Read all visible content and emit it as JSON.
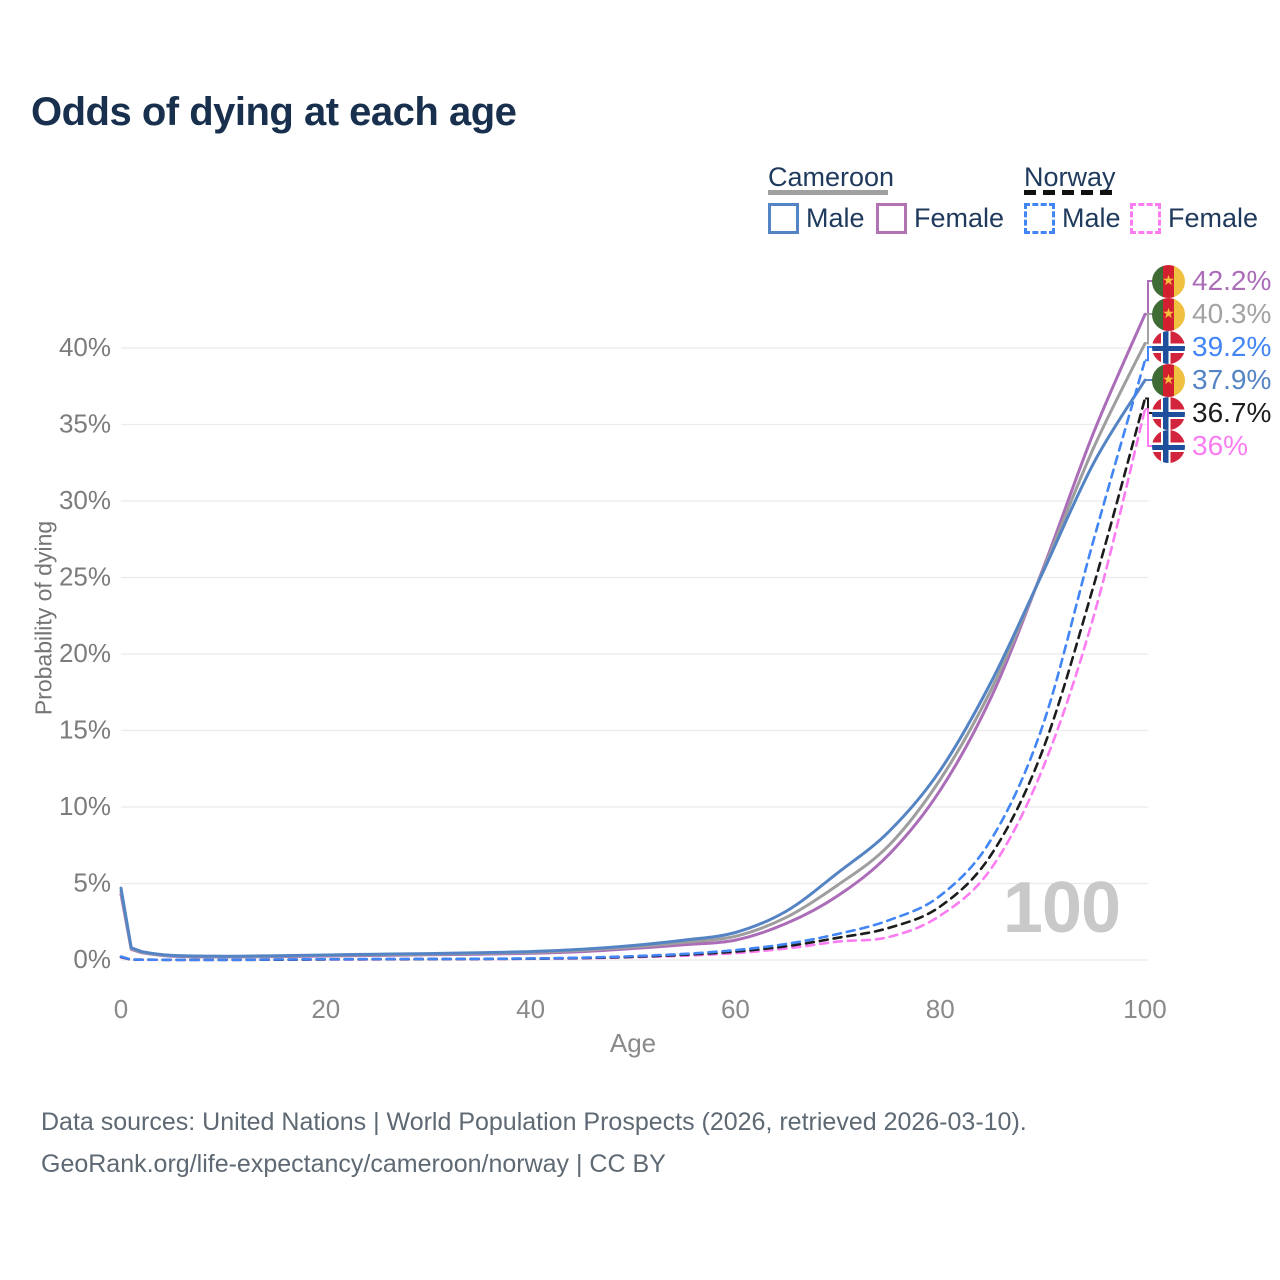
{
  "title": "Odds of dying at each age",
  "legend": {
    "cameroon": {
      "label": "Cameroon",
      "male": "Male",
      "female": "Female"
    },
    "norway": {
      "label": "Norway",
      "male": "Male",
      "female": "Female"
    }
  },
  "axes": {
    "y_title": "Probability of dying",
    "x_title": "Age"
  },
  "watermark_age": "100",
  "footer": {
    "line1": "Data sources: United Nations | World Population Prospects (2026, retrieved 2026-03-10).",
    "line2": "GeoRank.org/life-expectancy/cameroon/norway | CC BY"
  },
  "colors": {
    "title_text": "#18304d",
    "legend_text": "#1f3a5c",
    "axis_text": "#8a8a8a",
    "gridline": "#ebebeb",
    "watermark": "#c9c9c9",
    "cameroon_male": "#5584c4",
    "cameroon_female": "#ab6db8",
    "cameroon_total": "#9e9e9e",
    "norway_male": "#4285f4",
    "norway_female": "#fb7cf2",
    "norway_total": "#1c1c1c"
  },
  "chart_data": {
    "type": "line",
    "title": "Odds of dying at each age",
    "xlabel": "Age",
    "ylabel": "Probability of dying",
    "xlim": [
      0,
      100
    ],
    "ylim": [
      0,
      44
    ],
    "xticks": [
      0,
      20,
      40,
      60,
      80,
      100
    ],
    "yticks": [
      0,
      5,
      10,
      15,
      20,
      25,
      30,
      35,
      40
    ],
    "ytick_suffix": "%",
    "grid": "horizontal",
    "legend_position": "top-right",
    "x": [
      0,
      1,
      2,
      5,
      10,
      15,
      20,
      25,
      30,
      35,
      40,
      45,
      50,
      55,
      60,
      65,
      70,
      75,
      80,
      85,
      90,
      95,
      100
    ],
    "series": [
      {
        "name": "Cameroon Female",
        "country": "Cameroon",
        "sex": "Female",
        "style": "solid",
        "color": "#ab6db8",
        "values": [
          4.3,
          0.7,
          0.48,
          0.25,
          0.2,
          0.22,
          0.26,
          0.3,
          0.34,
          0.38,
          0.44,
          0.55,
          0.75,
          1.0,
          1.3,
          2.4,
          4.2,
          6.9,
          11.1,
          17.2,
          25.5,
          34.5,
          42.2
        ],
        "end_label": "42.2%"
      },
      {
        "name": "Cameroon",
        "country": "Cameroon",
        "sex": "Both",
        "style": "solid",
        "color": "#9e9e9e",
        "values": [
          4.5,
          0.75,
          0.5,
          0.28,
          0.22,
          0.25,
          0.3,
          0.34,
          0.38,
          0.43,
          0.5,
          0.63,
          0.85,
          1.15,
          1.55,
          2.8,
          4.9,
          7.5,
          11.8,
          17.7,
          25.4,
          33.5,
          40.3
        ],
        "end_label": "40.3%"
      },
      {
        "name": "Cameroon Male",
        "country": "Cameroon",
        "sex": "Male",
        "style": "solid",
        "color": "#5584c4",
        "values": [
          4.7,
          0.8,
          0.55,
          0.3,
          0.25,
          0.28,
          0.33,
          0.38,
          0.42,
          0.48,
          0.55,
          0.7,
          0.95,
          1.3,
          1.8,
          3.2,
          5.7,
          8.4,
          12.4,
          18.2,
          25.3,
          32.5,
          37.9
        ],
        "end_label": "37.9%"
      },
      {
        "name": "Norway Female",
        "country": "Norway",
        "sex": "Female",
        "style": "dashed",
        "color": "#fb7cf2",
        "values": [
          0.17,
          0.02,
          0.01,
          0.01,
          0.01,
          0.02,
          0.03,
          0.04,
          0.05,
          0.06,
          0.08,
          0.11,
          0.18,
          0.28,
          0.45,
          0.75,
          1.2,
          1.5,
          2.9,
          6.0,
          12.5,
          22.5,
          36.0
        ],
        "end_label": "36%"
      },
      {
        "name": "Norway",
        "country": "Norway",
        "sex": "Both",
        "style": "dashed",
        "color": "#1c1c1c",
        "values": [
          0.2,
          0.02,
          0.02,
          0.01,
          0.01,
          0.02,
          0.04,
          0.05,
          0.06,
          0.07,
          0.09,
          0.13,
          0.21,
          0.34,
          0.55,
          0.9,
          1.45,
          2.1,
          3.5,
          6.9,
          13.7,
          24.5,
          36.7
        ],
        "end_label": "36.7%"
      },
      {
        "name": "Norway Male",
        "country": "Norway",
        "sex": "Male",
        "style": "dashed",
        "color": "#4285f4",
        "values": [
          0.22,
          0.03,
          0.02,
          0.01,
          0.01,
          0.03,
          0.05,
          0.06,
          0.07,
          0.08,
          0.1,
          0.15,
          0.25,
          0.4,
          0.65,
          1.05,
          1.7,
          2.6,
          4.2,
          7.9,
          15.3,
          27.5,
          39.2
        ],
        "end_label": "39.2%"
      }
    ]
  },
  "right_labels": [
    {
      "value": "42.2%",
      "series": "Cameroon Female",
      "flag": "cameroon",
      "color": "#ab6db8",
      "v": 42.2
    },
    {
      "value": "40.3%",
      "series": "Cameroon",
      "flag": "cameroon",
      "color": "#a3a3a3",
      "v": 40.3
    },
    {
      "value": "39.2%",
      "series": "Norway Male",
      "flag": "norway",
      "color": "#4285f4",
      "v": 39.2
    },
    {
      "value": "37.9%",
      "series": "Cameroon Male",
      "flag": "cameroon",
      "color": "#5584c4",
      "v": 37.9
    },
    {
      "value": "36.7%",
      "series": "Norway",
      "flag": "norway",
      "color": "#1c1c1c",
      "v": 36.7
    },
    {
      "value": "36%",
      "series": "Norway Female",
      "flag": "norway",
      "color": "#fb7cf2",
      "v": 36.0
    }
  ]
}
